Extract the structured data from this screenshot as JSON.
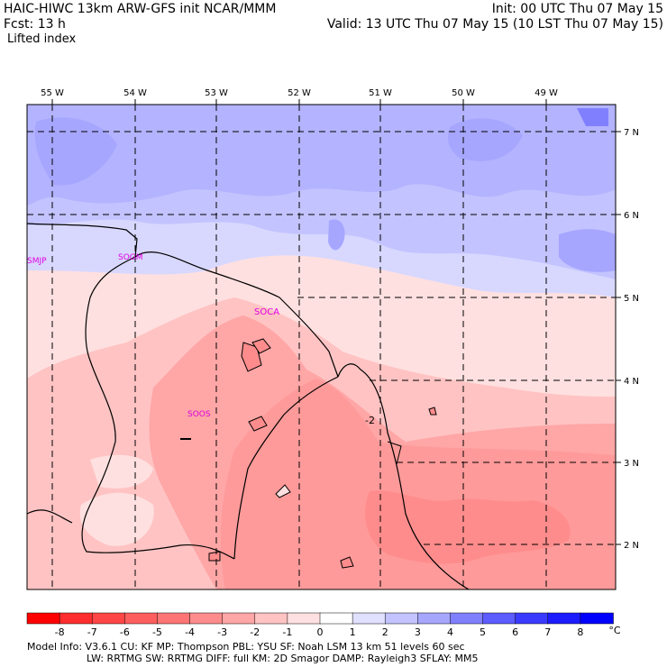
{
  "header": {
    "title_line": "HAIC-HIWC 13km ARW-GFS init   NCAR/MMM",
    "init": "Init: 00 UTC Thu 07 May 15",
    "fcst_label": "Fcst:   13 h",
    "valid": "Valid: 13 UTC Thu 07 May 15 (10 LST Thu 07 May 15)",
    "field": "Lifted index"
  },
  "map": {
    "lon_labels": [
      "55 W",
      "54 W",
      "53 W",
      "52 W",
      "51 W",
      "50 W",
      "49 W"
    ],
    "lat_labels": [
      "7 N",
      "6 N",
      "5 N",
      "4 N",
      "3 N",
      "2 N"
    ],
    "stations": [
      "SMJP",
      "SOGM",
      "SOCA",
      "SOOS"
    ],
    "contour_label": "-2"
  },
  "colorbar": {
    "values": [
      "-8",
      "-7",
      "-6",
      "-5",
      "-4",
      "-3",
      "-2",
      "-1",
      "0",
      "1",
      "2",
      "3",
      "4",
      "5",
      "6",
      "7",
      "8"
    ],
    "unit": "°C",
    "colors": [
      "#ff0000",
      "#ff2d2d",
      "#ff4646",
      "#ff5e5e",
      "#ff7575",
      "#ff8c8c",
      "#ffa6a6",
      "#ffc3c3",
      "#ffe0e0",
      "#ffffff",
      "#e0e0ff",
      "#c3c3ff",
      "#a6a6ff",
      "#8080ff",
      "#5c5cff",
      "#3a3aff",
      "#1c1cff",
      "#0000ff"
    ]
  },
  "footer": {
    "line1": "Model Info: V3.6.1    CU: KF      MP: Thompson     PBL: YSU       SF: Noah LSM      13 km    51 levels   60 sec",
    "line2": "LW: RRTMG    SW: RRTMG   DIFF: full     KM: 2D Smagor DAMP: Rayleigh3   SFLAY: MM5"
  }
}
